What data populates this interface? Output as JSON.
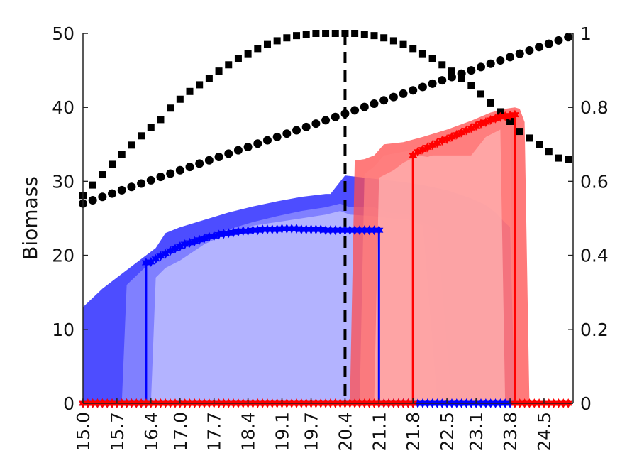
{
  "chart_data": {
    "type": "line",
    "ylabel": "Biomass",
    "xlim": [
      15.0,
      25.1
    ],
    "ylim": [
      0,
      50
    ],
    "y2lim": [
      0,
      1
    ],
    "x_ticks": [
      "15.0",
      "15.7",
      "16.4",
      "17.0",
      "17.7",
      "18.4",
      "19.1",
      "19.7",
      "20.4",
      "21.1",
      "21.8",
      "22.5",
      "23.1",
      "23.8",
      "24.5"
    ],
    "x_tick_values": [
      15.0,
      15.7,
      16.4,
      17.0,
      17.7,
      18.4,
      19.1,
      19.7,
      20.4,
      21.1,
      21.8,
      22.5,
      23.1,
      23.8,
      24.5
    ],
    "y_ticks": [
      "0",
      "10",
      "20",
      "30",
      "40",
      "50"
    ],
    "y2_ticks": [
      "0",
      "0.2",
      "0.4",
      "0.6",
      "0.8",
      "1"
    ],
    "vertical_line_x": 20.4,
    "colors": {
      "blue": "#0000ff",
      "blue_band_outer": "#4d4dff",
      "blue_band_mid": "#8080ff",
      "blue_band_inner": "#b3b3ff",
      "red": "#ff0000",
      "red_band_outer": "#ff4d4d",
      "red_band_mid": "#ff8080",
      "red_band_inner": "#ffb3b3",
      "black": "#000000"
    },
    "bands": {
      "blue": [
        {
          "level": "outer",
          "x": [
            15.0,
            15.4,
            15.8,
            16.2,
            16.5,
            16.7,
            17.0,
            17.5,
            18.0,
            18.5,
            19.0,
            19.5,
            20.0,
            20.1,
            20.4,
            20.8,
            21.2,
            21.6,
            22.0,
            22.5,
            23.0,
            23.3,
            23.5,
            23.7,
            23.8,
            23.9
          ],
          "upper": [
            13,
            15.5,
            17.5,
            19.5,
            21,
            23,
            23.8,
            24.8,
            25.8,
            26.6,
            27.3,
            27.9,
            28.3,
            28.3,
            30.8,
            30.5,
            30.2,
            29.9,
            29.5,
            28.8,
            27.7,
            26.8,
            25.8,
            24.4,
            23.8,
            0
          ]
        },
        {
          "level": "mid",
          "x": [
            15.8,
            15.9,
            16.3,
            16.6,
            17.0,
            17.5,
            18.0,
            18.5,
            19.0,
            19.5,
            20.0,
            20.3,
            20.5,
            21.0,
            21.3,
            21.7,
            22.0,
            22.3,
            22.6
          ],
          "upper": [
            0,
            16,
            18.5,
            20.3,
            21,
            22.5,
            23.5,
            24.5,
            25.3,
            26,
            26.5,
            27,
            26.5,
            26.5,
            25.8,
            25.5,
            24.5,
            23.5,
            0
          ]
        },
        {
          "level": "inner",
          "x": [
            16.4,
            16.5,
            16.7,
            17.0,
            17.5,
            18.0,
            18.5,
            19.0,
            19.5,
            20.0,
            20.3,
            20.5,
            21.0,
            21.3,
            21.7,
            22.0,
            22.3
          ],
          "upper": [
            0,
            17,
            18.3,
            19.3,
            21.5,
            23,
            24,
            24.5,
            25,
            25.5,
            26,
            25.5,
            25.3,
            25,
            24.8,
            24,
            0
          ]
        }
      ],
      "red": [
        {
          "level": "outer",
          "x": [
            20.5,
            20.6,
            20.8,
            21.0,
            21.2,
            21.6,
            22.0,
            22.5,
            23.0,
            23.4,
            23.7,
            23.9,
            24.0,
            24.1,
            24.2
          ],
          "upper": [
            0,
            32.8,
            33,
            33.5,
            35,
            35.3,
            36,
            37,
            38.2,
            39.3,
            39.8,
            40,
            39.8,
            38,
            0
          ]
        },
        {
          "level": "mid",
          "x": [
            20.7,
            20.8,
            21.0,
            21.2,
            21.6,
            22.0,
            22.5,
            23.0,
            23.4,
            23.7,
            23.8,
            23.9
          ],
          "upper": [
            0,
            31,
            32,
            33.5,
            34,
            34.5,
            35.3,
            36.5,
            37.6,
            38.3,
            38.5,
            0
          ]
        },
        {
          "level": "inner",
          "x": [
            21.0,
            21.1,
            21.4,
            21.6,
            21.9,
            22.1,
            22.2,
            22.3,
            22.6,
            22.8,
            22.9,
            23.0,
            23.3,
            23.6,
            23.7
          ],
          "upper": [
            0,
            30.5,
            31.5,
            32.5,
            33.5,
            33.3,
            33.5,
            33.5,
            33.5,
            33.5,
            33.5,
            33.5,
            36,
            37,
            0
          ]
        }
      ]
    },
    "series": [
      {
        "color": "blue",
        "marker": "star",
        "x": [
          15.0,
          15.1,
          15.2,
          15.3,
          15.4,
          15.5,
          15.6,
          15.7,
          15.8,
          15.9,
          16.0,
          16.1,
          16.2,
          16.3,
          16.3,
          16.4,
          16.5,
          16.6,
          16.7,
          16.8,
          16.9,
          17.0,
          17.1,
          17.2,
          17.3,
          17.4,
          17.5,
          17.6,
          17.7,
          17.8,
          17.9,
          18.0,
          18.1,
          18.2,
          18.3,
          18.4,
          18.5,
          18.6,
          18.7,
          18.8,
          18.9,
          19.0,
          19.1,
          19.2,
          19.3,
          19.4,
          19.5,
          19.6,
          19.7,
          19.8,
          19.9,
          20.0,
          20.1,
          20.2,
          20.3,
          20.4,
          20.5,
          20.6,
          20.7,
          20.8,
          20.9,
          21.0,
          21.1,
          21.1,
          21.2,
          21.3,
          21.4,
          21.5,
          21.6,
          21.7,
          21.8,
          21.9,
          22.0,
          22.1,
          22.2,
          22.3,
          22.4,
          22.5,
          22.6,
          22.7,
          22.8,
          22.9,
          23.0,
          23.1,
          23.2,
          23.3,
          23.4,
          23.5,
          23.6,
          23.7,
          23.8
        ],
        "y": [
          0,
          0,
          0,
          0,
          0,
          0,
          0,
          0,
          0,
          0,
          0,
          0,
          0,
          0,
          19,
          19.1,
          19.5,
          19.9,
          20.2,
          20.6,
          20.9,
          21.2,
          21.5,
          21.7,
          21.9,
          22.1,
          22.3,
          22.5,
          22.6,
          22.8,
          22.9,
          23.0,
          23.1,
          23.2,
          23.3,
          23.3,
          23.4,
          23.4,
          23.5,
          23.5,
          23.5,
          23.5,
          23.6,
          23.6,
          23.6,
          23.6,
          23.5,
          23.5,
          23.5,
          23.5,
          23.5,
          23.4,
          23.4,
          23.4,
          23.4,
          23.4,
          23.4,
          23.4,
          23.4,
          23.4,
          23.4,
          23.4,
          23.4,
          0,
          0,
          0,
          0,
          0,
          0,
          0,
          0,
          0,
          0,
          0,
          0,
          0,
          0,
          0,
          0,
          0,
          0,
          0,
          0,
          0,
          0,
          0,
          0,
          0,
          0,
          0,
          0
        ]
      },
      {
        "color": "red",
        "marker": "star",
        "x": [
          15.0,
          15.1,
          15.2,
          15.3,
          15.4,
          15.5,
          15.6,
          15.7,
          15.8,
          15.9,
          16.0,
          16.1,
          16.2,
          16.3,
          16.4,
          16.5,
          16.6,
          16.7,
          16.8,
          16.9,
          17.0,
          17.1,
          17.2,
          17.3,
          17.4,
          17.5,
          17.6,
          17.7,
          17.8,
          17.9,
          18.0,
          18.1,
          18.2,
          18.3,
          18.4,
          18.5,
          18.6,
          18.7,
          18.8,
          18.9,
          19.0,
          19.1,
          19.2,
          19.3,
          19.4,
          19.5,
          19.6,
          19.7,
          19.8,
          19.9,
          20.0,
          20.1,
          20.2,
          20.3,
          20.4,
          20.5,
          20.6,
          20.7,
          20.8,
          20.9,
          21.0,
          21.1,
          21.2,
          21.3,
          21.4,
          21.5,
          21.6,
          21.7,
          21.8,
          21.8,
          21.9,
          22.0,
          22.1,
          22.2,
          22.3,
          22.4,
          22.5,
          22.6,
          22.7,
          22.8,
          22.9,
          23.0,
          23.1,
          23.2,
          23.3,
          23.4,
          23.5,
          23.6,
          23.7,
          23.8,
          23.9,
          23.9,
          24.0,
          24.1,
          24.2,
          24.3,
          24.4,
          24.5,
          24.6,
          24.7,
          24.8,
          24.9,
          25.0
        ],
        "y": [
          0,
          0,
          0,
          0,
          0,
          0,
          0,
          0,
          0,
          0,
          0,
          0,
          0,
          0,
          0,
          0,
          0,
          0,
          0,
          0,
          0,
          0,
          0,
          0,
          0,
          0,
          0,
          0,
          0,
          0,
          0,
          0,
          0,
          0,
          0,
          0,
          0,
          0,
          0,
          0,
          0,
          0,
          0,
          0,
          0,
          0,
          0,
          0,
          0,
          0,
          0,
          0,
          0,
          0,
          0,
          0,
          0,
          0,
          0,
          0,
          0,
          0,
          0,
          0,
          0,
          0,
          0,
          0,
          0,
          33.5,
          34,
          34.3,
          34.6,
          34.9,
          35.2,
          35.5,
          35.7,
          36,
          36.3,
          36.6,
          36.9,
          37.2,
          37.5,
          37.8,
          38,
          38.3,
          38.5,
          38.7,
          38.8,
          38.9,
          39,
          0,
          0,
          0,
          0,
          0,
          0,
          0,
          0,
          0,
          0,
          0,
          0
        ]
      },
      {
        "color": "black",
        "marker": "square",
        "axis": "right",
        "x": [
          15.0,
          15.2,
          15.4,
          15.6,
          15.8,
          16.0,
          16.2,
          16.4,
          16.6,
          16.8,
          17.0,
          17.2,
          17.4,
          17.6,
          17.8,
          18.0,
          18.2,
          18.4,
          18.6,
          18.8,
          19.0,
          19.2,
          19.4,
          19.6,
          19.8,
          20.0,
          20.2,
          20.4,
          20.6,
          20.8,
          21.0,
          21.2,
          21.4,
          21.6,
          21.8,
          22.0,
          22.2,
          22.4,
          22.6,
          22.8,
          23.0,
          23.2,
          23.4,
          23.6,
          23.8,
          24.0,
          24.2,
          24.4,
          24.6,
          24.8,
          25.0
        ],
        "y": [
          0.562,
          0.59,
          0.618,
          0.646,
          0.673,
          0.698,
          0.723,
          0.746,
          0.767,
          0.798,
          0.822,
          0.843,
          0.861,
          0.878,
          0.898,
          0.915,
          0.931,
          0.945,
          0.959,
          0.97,
          0.98,
          0.988,
          0.994,
          0.998,
          1.0,
          1.0,
          1.0,
          1.0,
          1.0,
          0.998,
          0.994,
          0.988,
          0.98,
          0.97,
          0.959,
          0.945,
          0.931,
          0.915,
          0.898,
          0.878,
          0.858,
          0.836,
          0.812,
          0.788,
          0.762,
          0.735,
          0.717,
          0.699,
          0.681,
          0.663,
          0.66
        ]
      },
      {
        "color": "black",
        "marker": "circle",
        "axis": "right",
        "x": [
          15.0,
          15.2,
          15.4,
          15.6,
          15.8,
          16.0,
          16.2,
          16.4,
          16.6,
          16.8,
          17.0,
          17.2,
          17.4,
          17.6,
          17.8,
          18.0,
          18.2,
          18.4,
          18.6,
          18.8,
          19.0,
          19.2,
          19.4,
          19.6,
          19.8,
          20.0,
          20.2,
          20.4,
          20.6,
          20.8,
          21.0,
          21.2,
          21.4,
          21.6,
          21.8,
          22.0,
          22.2,
          22.4,
          22.6,
          22.8,
          23.0,
          23.2,
          23.4,
          23.6,
          23.8,
          24.0,
          24.2,
          24.4,
          24.6,
          24.8,
          25.0
        ],
        "y": [
          0.54,
          0.549,
          0.558,
          0.567,
          0.576,
          0.585,
          0.594,
          0.603,
          0.612,
          0.621,
          0.63,
          0.639,
          0.648,
          0.657,
          0.666,
          0.675,
          0.684,
          0.693,
          0.702,
          0.711,
          0.72,
          0.729,
          0.738,
          0.747,
          0.756,
          0.765,
          0.774,
          0.783,
          0.792,
          0.801,
          0.81,
          0.819,
          0.828,
          0.837,
          0.846,
          0.855,
          0.864,
          0.873,
          0.882,
          0.891,
          0.9,
          0.909,
          0.918,
          0.927,
          0.936,
          0.945,
          0.954,
          0.963,
          0.972,
          0.981,
          0.99
        ]
      }
    ]
  }
}
